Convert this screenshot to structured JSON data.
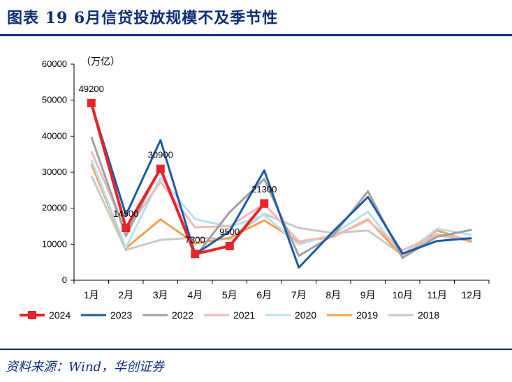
{
  "figure": {
    "title": "图表 19   6月信贷投放规模不及季节性",
    "source": "资料来源：Wind，华创证券"
  },
  "chart_data": {
    "type": "line",
    "title": "",
    "unit_label": "（万亿）",
    "xlabel": "",
    "ylabel": "",
    "categories": [
      "1月",
      "2月",
      "3月",
      "4月",
      "5月",
      "6月",
      "7月",
      "8月",
      "9月",
      "10月",
      "11月",
      "12月"
    ],
    "ylim": [
      0,
      60000
    ],
    "yticks": [
      0,
      10000,
      20000,
      30000,
      40000,
      50000,
      60000
    ],
    "grid": false,
    "legend_position": "bottom",
    "series": [
      {
        "name": "2018",
        "color": "#c8c8c8",
        "values": [
          29000,
          8400,
          11200,
          11800,
          11500,
          18400,
          14500,
          13100,
          13800,
          7000,
          12500,
          10800
        ]
      },
      {
        "name": "2019",
        "color": "#f4a04a",
        "values": [
          32300,
          8900,
          16900,
          10200,
          11800,
          16600,
          10600,
          12100,
          16900,
          6600,
          13900,
          10600
        ]
      },
      {
        "name": "2020",
        "color": "#b8e0ee",
        "values": [
          33400,
          9100,
          28500,
          17000,
          14800,
          18100,
          9900,
          12800,
          19000,
          6900,
          14300,
          12600
        ]
      },
      {
        "name": "2021",
        "color": "#f2b8b8",
        "values": [
          35800,
          13600,
          27300,
          14700,
          15000,
          21200,
          10800,
          12200,
          16600,
          8300,
          12700,
          11300
        ]
      },
      {
        "name": "2022",
        "color": "#a0a0a0",
        "values": [
          39800,
          12300,
          31300,
          6500,
          18900,
          28100,
          6800,
          12500,
          24700,
          6200,
          12100,
          14000
        ]
      },
      {
        "name": "2023",
        "color": "#1a5aa8",
        "values": [
          49000,
          18100,
          38900,
          7200,
          13600,
          30500,
          3500,
          13600,
          23100,
          7400,
          10900,
          11700
        ]
      },
      {
        "name": "2024",
        "color": "#e8232a",
        "marker": "square",
        "values": [
          49200,
          14500,
          30900,
          7300,
          9500,
          21300,
          null,
          null,
          null,
          null,
          null,
          null
        ]
      }
    ],
    "data_labels": [
      {
        "series": "2024",
        "index": 0,
        "text": "49200"
      },
      {
        "series": "2024",
        "index": 1,
        "text": "14500"
      },
      {
        "series": "2024",
        "index": 2,
        "text": "30900"
      },
      {
        "series": "2024",
        "index": 3,
        "text": "7300"
      },
      {
        "series": "2024",
        "index": 4,
        "text": "9500"
      },
      {
        "series": "2024",
        "index": 5,
        "text": "21300"
      }
    ],
    "legend_order": [
      "2024",
      "2023",
      "2022",
      "2021",
      "2020",
      "2019",
      "2018"
    ]
  }
}
